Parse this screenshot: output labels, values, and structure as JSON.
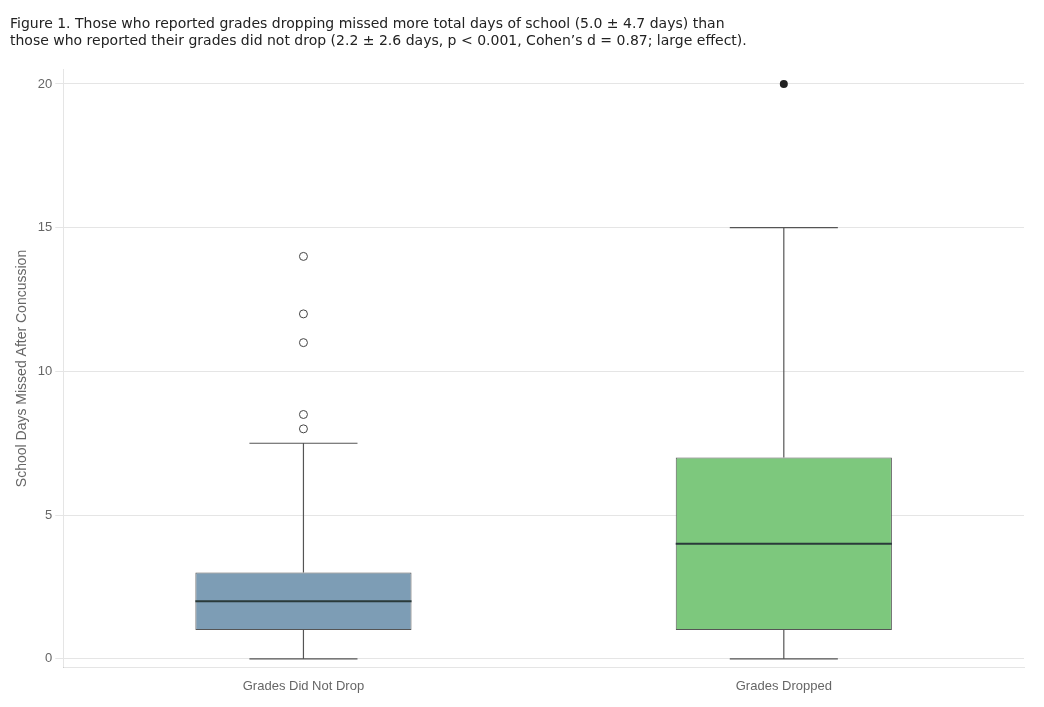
{
  "chart_data": {
    "type": "box",
    "title": [
      "Figure 1. Those who reported grades dropping missed more total days of school (5.0 ± 4.7 days) than",
      "those who reported their grades did not drop (2.2 ± 2.6 days, p < 0.001, Cohen’s d = 0.87; large effect)."
    ],
    "ylabel": "School Days Missed After Concussion",
    "categories": [
      "Grades Did Not Drop",
      "Grades Dropped"
    ],
    "stats": [
      {
        "whislo": 0,
        "q1": 1.0,
        "med": 2.0,
        "q3": 3.0,
        "whishi": 7.5,
        "fliers": [
          8.0,
          8.5,
          11.0,
          12.0,
          14.0
        ]
      },
      {
        "whislo": 0.0,
        "q1": 1.0,
        "med": 4.0,
        "q3": 7.0,
        "whishi": 15.0,
        "fliers": [
          20.0
        ]
      }
    ],
    "colors": [
      "#7d9db5",
      "#7dc87d"
    ],
    "ylim": [
      -0.3,
      20.5
    ],
    "yticks": [
      0,
      5,
      10,
      15,
      20
    ],
    "grid": true
  }
}
